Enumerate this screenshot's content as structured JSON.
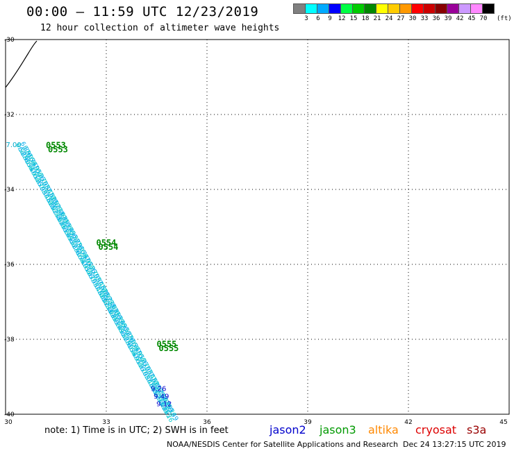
{
  "header": {
    "title": "00:00 – 11:59 UTC 12/23/2019",
    "subtitle": "12 hour collection of altimeter wave heights"
  },
  "colorbar": {
    "unit": "(ft)",
    "swatches": [
      {
        "color": "#808080",
        "label": "3"
      },
      {
        "color": "#00ffff",
        "label": "6"
      },
      {
        "color": "#00aaff",
        "label": "9"
      },
      {
        "color": "#0000ff",
        "label": "12"
      },
      {
        "color": "#00ff44",
        "label": "15"
      },
      {
        "color": "#00cc00",
        "label": "18"
      },
      {
        "color": "#008800",
        "label": "21"
      },
      {
        "color": "#ffff00",
        "label": "24"
      },
      {
        "color": "#ffcc00",
        "label": "27"
      },
      {
        "color": "#ff9900",
        "label": "30"
      },
      {
        "color": "#ff0000",
        "label": "33"
      },
      {
        "color": "#cc0000",
        "label": "36"
      },
      {
        "color": "#880000",
        "label": "39"
      },
      {
        "color": "#990099",
        "label": "42"
      },
      {
        "color": "#cc99ff",
        "label": "45"
      },
      {
        "color": "#ff88ff",
        "label": "70"
      },
      {
        "color": "#000000",
        "label": ""
      }
    ]
  },
  "map": {
    "lon_range": [
      30,
      45
    ],
    "lat_range": [
      -40,
      -30
    ],
    "x_ticks": [
      "30",
      "33",
      "36",
      "39",
      "42",
      "45"
    ],
    "y_ticks": [
      "-30",
      "-32",
      "-34",
      "-36",
      "-38",
      "-40"
    ],
    "time_labels": [
      {
        "text": "0553",
        "lon": 31.2,
        "lat": -32.9
      },
      {
        "text": "0554",
        "lon": 32.7,
        "lat": -35.5
      },
      {
        "text": "0555",
        "lon": 34.5,
        "lat": -38.2
      }
    ],
    "track_start": {
      "lon": 30.3,
      "lat": -32.8,
      "label": "7.00"
    },
    "track_end": {
      "lon": 34.7,
      "lat": -39.9
    },
    "track_values": [
      "6.52",
      "6.88",
      "6.91",
      "7.05",
      "6.74",
      "6.60",
      "6.95",
      "7.12",
      "6.83",
      "6.70",
      "6.99",
      "7.30",
      "7.48",
      "7.62",
      "7.85",
      "8.02",
      "8.21",
      "8.40",
      "8.63",
      "8.85",
      "9.05",
      "9.26",
      "9.49",
      "9.12"
    ],
    "blue_values": [
      "9.26",
      "9.49",
      "9.12"
    ]
  },
  "legend": [
    {
      "name": "jason2",
      "color": "#0000cc"
    },
    {
      "name": "jason3",
      "color": "#009900"
    },
    {
      "name": "altika",
      "color": "#ff8800"
    },
    {
      "name": "cryosat",
      "color": "#dd0000"
    },
    {
      "name": "s3a",
      "color": "#990000"
    }
  ],
  "footer": {
    "note": "note: 1) Time is in UTC; 2) SWH is in feet",
    "credit": "NOAA/NESDIS Center for Satellite Applications and Research",
    "timestamp": "Dec 24 13:27:15 UTC 2019"
  }
}
